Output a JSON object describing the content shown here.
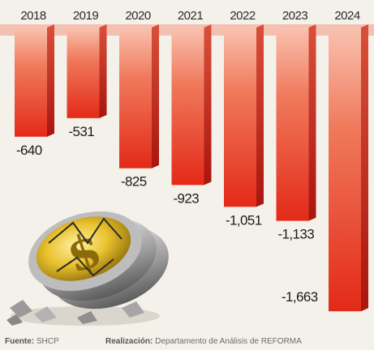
{
  "chart_data": {
    "type": "bar",
    "categories": [
      "2018",
      "2019",
      "2020",
      "2021",
      "2022",
      "2023",
      "2024"
    ],
    "values": [
      -640,
      -531,
      -825,
      -923,
      -1051,
      -1133,
      -1663
    ],
    "value_labels": [
      "-640",
      "-531",
      "-825",
      "-923",
      "-1,051",
      "-1,133",
      "-1,663"
    ],
    "ylim": [
      -1700,
      0
    ],
    "grid": false,
    "colors": {
      "bar_top": "#f7b8a6",
      "bar_bottom": "#e8331f",
      "bar_side": "#b51a12",
      "baseline": "#f2a893"
    }
  },
  "footer": {
    "source_label": "Fuente:",
    "source_value": "SHCP",
    "credit_label": "Realización:",
    "credit_value": "Departamento de Análisis de REFORMA"
  }
}
